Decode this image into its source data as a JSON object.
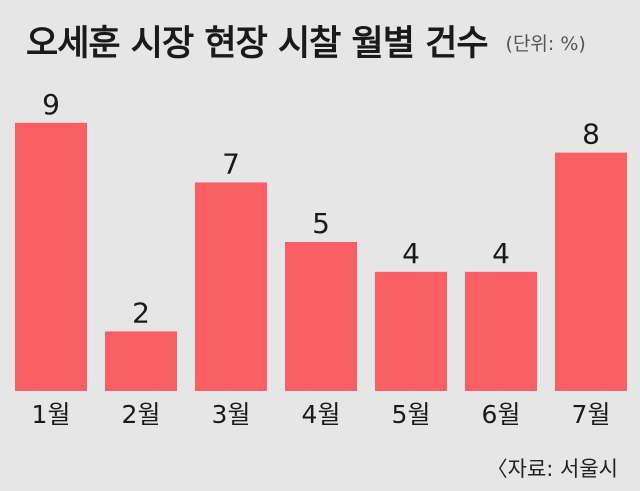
{
  "header": {
    "title": "오세훈 시장 현장 시찰 월별 건수",
    "unit": "(단위: %)"
  },
  "source": "〈자료: 서울시",
  "colors": {
    "bar": "#fa5f63",
    "background": "#e6e6e6",
    "text": "#1a1a1a"
  },
  "chart_data": {
    "type": "bar",
    "title": "오세훈 시장 현장 시찰 월별 건수",
    "ylabel": "",
    "xlabel": "",
    "unit": "(단위: %)",
    "categories": [
      "1월",
      "2월",
      "3월",
      "4월",
      "5월",
      "6월",
      "7월"
    ],
    "values": [
      9,
      2,
      7,
      5,
      4,
      4,
      8
    ],
    "data_labels": [
      "9",
      "2",
      "7",
      "5",
      "4",
      "4",
      "8"
    ],
    "ylim": [
      0,
      9
    ],
    "grid": false,
    "legend": "none"
  }
}
